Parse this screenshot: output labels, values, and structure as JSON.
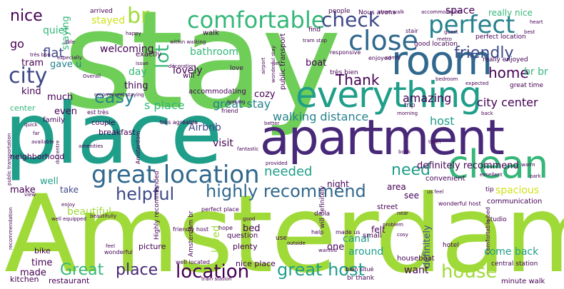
{
  "palette": {
    "lime": "#a0da39",
    "green": "#6ece58",
    "teal": "#1f9e89",
    "blue": "#31688e",
    "indigo": "#3e4989",
    "purple": "#482878",
    "dark": "#440154",
    "sea": "#26828e",
    "mint": "#35b779",
    "yellow": "#d0e11c"
  },
  "words": [
    {
      "text": "stay",
      "color": "green"
    },
    {
      "text": "Amsterdam",
      "color": "lime"
    },
    {
      "text": "place",
      "color": "teal"
    },
    {
      "text": "apartment",
      "color": "purple"
    },
    {
      "text": "everything",
      "color": "teal"
    },
    {
      "text": "room",
      "color": "blue"
    },
    {
      "text": "clean",
      "color": "mint"
    },
    {
      "text": "great location",
      "color": "blue"
    },
    {
      "text": "close",
      "color": "blue"
    },
    {
      "text": "perfect",
      "color": "sea"
    },
    {
      "text": "comfortable",
      "color": "mint"
    },
    {
      "text": "city",
      "color": "indigo"
    },
    {
      "text": "check",
      "color": "indigo"
    },
    {
      "text": "location",
      "color": "dark"
    },
    {
      "text": "house",
      "color": "lime"
    },
    {
      "text": "great host",
      "color": "teal"
    },
    {
      "text": "highly recommend",
      "color": "blue"
    },
    {
      "text": "helpful",
      "color": "indigo"
    },
    {
      "text": "friendly",
      "color": "indigo"
    },
    {
      "text": "easy",
      "color": "sea"
    },
    {
      "text": "br",
      "color": "lime"
    },
    {
      "text": "lot",
      "color": "mint"
    },
    {
      "text": "need",
      "color": "teal"
    },
    {
      "text": "Great",
      "color": "mint"
    },
    {
      "text": "place",
      "color": "purple"
    },
    {
      "text": "home",
      "color": "dark"
    },
    {
      "text": "Thank",
      "color": "dark"
    },
    {
      "text": "nice",
      "color": "dark"
    },
    {
      "text": "walking distance",
      "color": "sea"
    },
    {
      "text": "needed",
      "color": "teal"
    },
    {
      "text": "city center",
      "color": "dark"
    },
    {
      "text": "host",
      "color": "teal"
    },
    {
      "text": "amazing",
      "color": "dark"
    },
    {
      "text": "great stay",
      "color": "sea"
    },
    {
      "text": "definitely recommend",
      "color": "dark"
    },
    {
      "text": "spacious",
      "color": "yellow"
    },
    {
      "text": "Airbnb",
      "color": "indigo"
    },
    {
      "text": "visit",
      "color": "dark"
    },
    {
      "text": "s place",
      "color": "mint"
    },
    {
      "text": "flat",
      "color": "indigo"
    },
    {
      "text": "quiet",
      "color": "mint"
    },
    {
      "text": "welcoming",
      "color": "dark"
    },
    {
      "text": "bathroom",
      "color": "mint"
    },
    {
      "text": "space",
      "color": "dark"
    },
    {
      "text": "really nice",
      "color": "mint"
    },
    {
      "text": "br br",
      "color": "mint"
    },
    {
      "text": "stayed",
      "color": "yellow"
    },
    {
      "text": "staying",
      "color": "mint"
    },
    {
      "text": "go",
      "color": "dark"
    },
    {
      "text": "tram",
      "color": "dark"
    },
    {
      "text": "gave u",
      "color": "sea"
    },
    {
      "text": "day",
      "color": "mint"
    },
    {
      "text": "lovely",
      "color": "dark"
    },
    {
      "text": "thing",
      "color": "dark"
    },
    {
      "text": "kind",
      "color": "dark"
    },
    {
      "text": "much",
      "color": "dark"
    },
    {
      "text": "even",
      "color": "dark"
    },
    {
      "text": "center",
      "color": "mint"
    },
    {
      "text": "cozy",
      "color": "dark"
    },
    {
      "text": "boat",
      "color": "dark"
    },
    {
      "text": "well",
      "color": "teal"
    },
    {
      "text": "make",
      "color": "dark"
    },
    {
      "text": "beautiful",
      "color": "lime"
    },
    {
      "text": "take",
      "color": "indigo"
    },
    {
      "text": "bed",
      "color": "dark"
    },
    {
      "text": "loved",
      "color": "lime"
    },
    {
      "text": "canal",
      "color": "teal"
    },
    {
      "text": "around",
      "color": "teal"
    },
    {
      "text": "want",
      "color": "dark"
    },
    {
      "text": "come back",
      "color": "teal"
    },
    {
      "text": "definitely",
      "color": "indigo"
    },
    {
      "text": "one",
      "color": "dark"
    },
    {
      "text": "time",
      "color": "dark"
    },
    {
      "text": "made",
      "color": "dark"
    },
    {
      "text": "night",
      "color": "dark"
    },
    {
      "text": "area",
      "color": "dark"
    },
    {
      "text": "see",
      "color": "dark"
    },
    {
      "text": "bike",
      "color": "dark"
    },
    {
      "text": "plenty",
      "color": "dark"
    },
    {
      "text": "picture",
      "color": "dark"
    },
    {
      "text": "kitchen",
      "color": "dark"
    },
    {
      "text": "restaurant",
      "color": "dark"
    },
    {
      "text": "felt",
      "color": "dark"
    },
    {
      "text": "nice place",
      "color": "dark"
    },
    {
      "text": "family",
      "color": "dark"
    },
    {
      "text": "well located",
      "color": "dark"
    },
    {
      "text": "houseboat",
      "color": "dark"
    },
    {
      "text": "breakfast",
      "color": "dark"
    },
    {
      "text": "neighborhood",
      "color": "dark"
    },
    {
      "text": "couple",
      "color": "dark"
    },
    {
      "text": "will",
      "color": "dark"
    },
    {
      "text": "walk",
      "color": "dark"
    },
    {
      "text": "exactly",
      "color": "dark"
    },
    {
      "text": "accommodating",
      "color": "dark"
    },
    {
      "text": "communication",
      "color": "dark"
    },
    {
      "text": "minute walk",
      "color": "dark"
    },
    {
      "text": "central station",
      "color": "dark"
    },
    {
      "text": "street",
      "color": "dark"
    },
    {
      "text": "convenient",
      "color": "dark"
    },
    {
      "text": "question",
      "color": "dark"
    },
    {
      "text": "hotel",
      "color": "dark"
    },
    {
      "text": "small",
      "color": "dark"
    },
    {
      "text": "arrived",
      "color": "dark"
    },
    {
      "text": "people",
      "color": "dark"
    },
    {
      "text": "find",
      "color": "dark"
    },
    {
      "text": "love",
      "color": "dark"
    },
    {
      "text": "hope",
      "color": "dark"
    },
    {
      "text": "use",
      "color": "dark"
    },
    {
      "text": "help",
      "color": "dark"
    },
    {
      "text": "tip",
      "color": "dark"
    },
    {
      "text": "trip",
      "color": "dark"
    },
    {
      "text": "studio",
      "color": "dark"
    },
    {
      "text": "très bien",
      "color": "dark"
    },
    {
      "text": "Nous avons",
      "color": "dark"
    },
    {
      "text": "great time",
      "color": "dark"
    },
    {
      "text": "perfect location",
      "color": "dark"
    },
    {
      "text": "really enjoyed",
      "color": "dark"
    },
    {
      "text": "good location",
      "color": "dark"
    },
    {
      "text": "responsive",
      "color": "dark"
    },
    {
      "text": "enjoyed",
      "color": "dark"
    },
    {
      "text": "stair",
      "color": "dark"
    },
    {
      "text": "public transport",
      "color": "dark"
    },
    {
      "text": "Highly recommended",
      "color": "dark"
    },
    {
      "text": "très agréable",
      "color": "dark"
    },
    {
      "text": "est très",
      "color": "dark"
    },
    {
      "text": "friend",
      "color": "dark"
    },
    {
      "text": "wonderful",
      "color": "dark"
    },
    {
      "text": "friendly host",
      "color": "dark"
    },
    {
      "text": "wonderful host",
      "color": "dark"
    },
    {
      "text": "perfect place",
      "color": "dark"
    },
    {
      "text": "de la",
      "color": "dark"
    },
    {
      "text": "will definitely",
      "color": "dark"
    },
    {
      "text": "comfortable bed",
      "color": "dark"
    },
    {
      "text": "br thank",
      "color": "dark"
    },
    {
      "text": "bien situé",
      "color": "dark"
    },
    {
      "text": "made us",
      "color": "dark"
    },
    {
      "text": "recommend staying",
      "color": "dark"
    },
    {
      "text": "within walking",
      "color": "dark"
    },
    {
      "text": "short walk",
      "color": "dark"
    },
    {
      "text": "accommodation",
      "color": "dark"
    },
    {
      "text": "heart",
      "color": "dark"
    },
    {
      "text": "best",
      "color": "dark"
    },
    {
      "text": "Overall",
      "color": "dark"
    },
    {
      "text": "issue",
      "color": "dark"
    },
    {
      "text": "happy",
      "color": "dark"
    },
    {
      "text": "able",
      "color": "dark"
    },
    {
      "text": "far",
      "color": "dark"
    },
    {
      "text": "quick",
      "color": "dark"
    },
    {
      "text": "view",
      "color": "dark"
    },
    {
      "text": "enjoy",
      "color": "dark"
    },
    {
      "text": "excellent",
      "color": "dark"
    },
    {
      "text": "park",
      "color": "dark"
    },
    {
      "text": "warm",
      "color": "dark"
    },
    {
      "text": "back",
      "color": "dark"
    },
    {
      "text": "morning",
      "color": "dark"
    },
    {
      "text": "town",
      "color": "dark"
    },
    {
      "text": "book",
      "color": "dark"
    },
    {
      "text": "problem",
      "color": "dark"
    },
    {
      "text": "cosy",
      "color": "dark"
    },
    {
      "text": "wanted",
      "color": "dark"
    },
    {
      "text": "better",
      "color": "dark"
    },
    {
      "text": "fantastic",
      "color": "dark"
    },
    {
      "text": "provided",
      "color": "dark"
    },
    {
      "text": "amenities",
      "color": "dark"
    },
    {
      "text": "available",
      "color": "dark"
    },
    {
      "text": "très bon",
      "color": "dark"
    },
    {
      "text": "especially",
      "color": "dark"
    },
    {
      "text": "recommendation",
      "color": "dark"
    },
    {
      "text": "airport",
      "color": "dark"
    },
    {
      "text": "tram stop",
      "color": "dark"
    },
    {
      "text": "metro",
      "color": "dark"
    },
    {
      "text": "guest",
      "color": "dark"
    },
    {
      "text": "bedroom",
      "color": "dark"
    },
    {
      "text": "comfy",
      "color": "dark"
    },
    {
      "text": "expected",
      "color": "dark"
    },
    {
      "text": "décoration",
      "color": "dark"
    },
    {
      "text": "looking",
      "color": "dark"
    },
    {
      "text": "set",
      "color": "dark"
    },
    {
      "text": "public transportation",
      "color": "dark"
    },
    {
      "text": "wonderful stay",
      "color": "dark"
    },
    {
      "text": "du centre",
      "color": "dark"
    },
    {
      "text": "us feel",
      "color": "dark"
    },
    {
      "text": "beautifully",
      "color": "dark"
    },
    {
      "text": "near",
      "color": "dark"
    },
    {
      "text": "outside",
      "color": "dark"
    },
    {
      "text": "well equipped",
      "color": "dark"
    },
    {
      "text": "feel",
      "color": "dark"
    },
    {
      "text": "good",
      "color": "dark"
    },
    {
      "text": "Amsterdam br",
      "color": "dark"
    },
    {
      "text": "train station",
      "color": "dark"
    },
    {
      "text": "Amsterdam",
      "color": "dark"
    }
  ]
}
